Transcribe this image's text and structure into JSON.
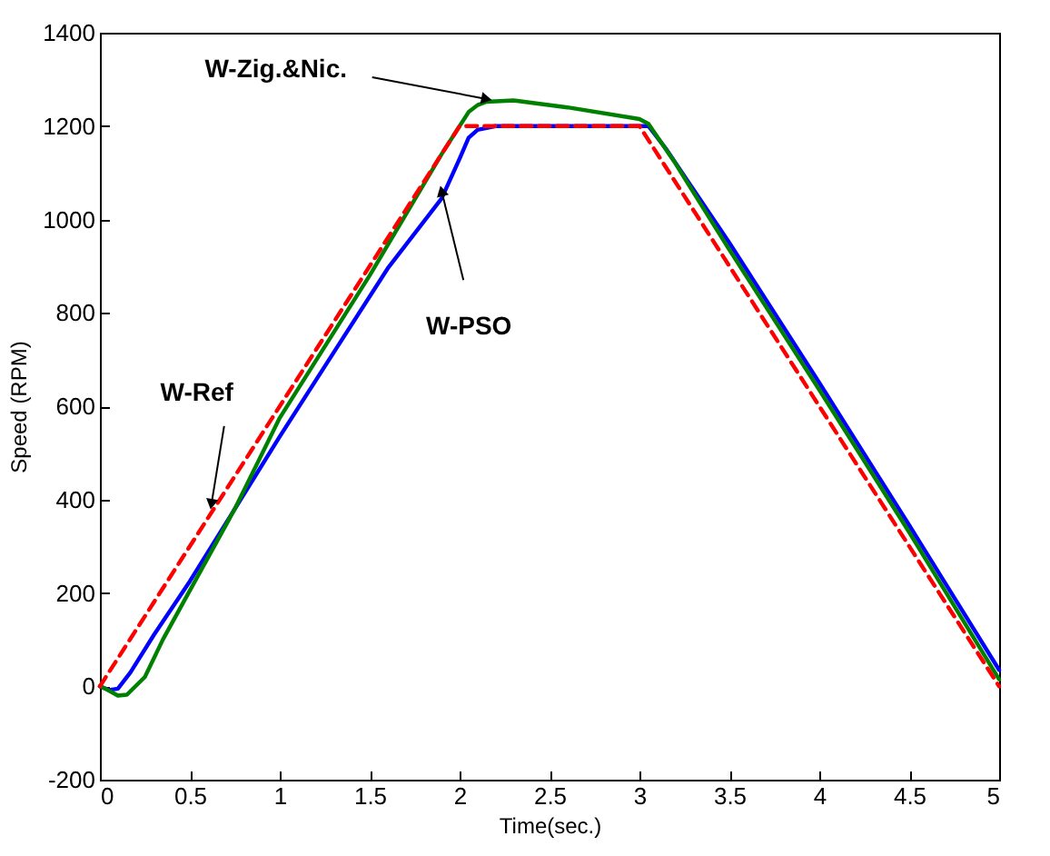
{
  "chart_data": {
    "type": "line",
    "xlabel": "Time(sec.)",
    "ylabel": "Speed  (RPM)",
    "xlim": [
      0,
      5
    ],
    "xticks": [
      0,
      0.5,
      1,
      1.5,
      2,
      2.5,
      3,
      3.5,
      4,
      4.5,
      5
    ],
    "ylim": [
      -200,
      1400
    ],
    "yticks": [
      -200,
      0,
      200,
      400,
      600,
      800,
      1000,
      1200,
      1400
    ],
    "grid": false,
    "marker": "none",
    "series": [
      {
        "color": "#0000ff",
        "line_style": "solid",
        "x": [
          0,
          0.05,
          0.1,
          0.17,
          0.3,
          0.5,
          0.75,
          1.0,
          1.3,
          1.6,
          1.9,
          2.0,
          2.05,
          2.1,
          2.2,
          3.05,
          3.15,
          3.5,
          4.0,
          4.5,
          5
        ],
        "values": [
          0,
          -8,
          -5,
          30,
          110,
          225,
          380,
          535,
          715,
          895,
          1045,
          1130,
          1175,
          1192,
          1200,
          1200,
          1150,
          950,
          650,
          345,
          35
        ]
      },
      {
        "color": "#008000",
        "line_style": "solid",
        "x": [
          0,
          0.03,
          0.1,
          0.15,
          0.25,
          0.35,
          0.5,
          0.75,
          1.0,
          1.5,
          1.9,
          2.0,
          2.05,
          2.1,
          2.15,
          2.3,
          2.6,
          3.0,
          3.05,
          3.2,
          3.5,
          4.0,
          4.5,
          5
        ],
        "values": [
          0,
          -5,
          -20,
          -18,
          20,
          100,
          205,
          380,
          575,
          880,
          1140,
          1200,
          1230,
          1245,
          1252,
          1255,
          1240,
          1215,
          1205,
          1120,
          935,
          635,
          330,
          15
        ]
      },
      {
        "color": "#ff0000",
        "line_style": "dashed",
        "x": [
          0,
          2,
          3,
          5
        ],
        "values": [
          0,
          1200,
          1200,
          0
        ]
      }
    ],
    "annotations": [
      {
        "text": "W-Zig.&Nic.",
        "x": 2.15,
        "y": 1258
      },
      {
        "text": "W-PSO",
        "x": 1.9,
        "y": 1061
      },
      {
        "text": "W-Ref",
        "x": 0.62,
        "y": 390
      }
    ]
  }
}
